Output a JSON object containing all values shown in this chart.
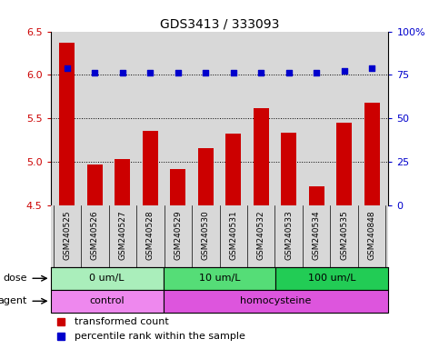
{
  "title": "GDS3413 / 333093",
  "samples": [
    "GSM240525",
    "GSM240526",
    "GSM240527",
    "GSM240528",
    "GSM240529",
    "GSM240530",
    "GSM240531",
    "GSM240532",
    "GSM240533",
    "GSM240534",
    "GSM240535",
    "GSM240848"
  ],
  "red_values": [
    6.37,
    4.97,
    5.03,
    5.35,
    4.91,
    5.15,
    5.32,
    5.62,
    5.33,
    4.72,
    5.45,
    5.68
  ],
  "blue_values_pct": [
    79,
    76,
    76,
    76,
    76,
    76,
    76,
    76,
    76,
    76,
    77,
    79
  ],
  "ylim_left": [
    4.5,
    6.5
  ],
  "ylim_right": [
    0,
    100
  ],
  "yticks_left": [
    4.5,
    5.0,
    5.5,
    6.0,
    6.5
  ],
  "yticks_right": [
    0,
    25,
    50,
    75,
    100
  ],
  "ytick_labels_right": [
    "0",
    "25",
    "50",
    "75",
    "100%"
  ],
  "gridlines": [
    5.0,
    5.5,
    6.0
  ],
  "bar_color": "#cc0000",
  "dot_color": "#0000cc",
  "dose_groups": [
    {
      "label": "0 um/L",
      "start": 0,
      "end": 4,
      "color": "#aaeebb"
    },
    {
      "label": "10 um/L",
      "start": 4,
      "end": 8,
      "color": "#55dd77"
    },
    {
      "label": "100 um/L",
      "start": 8,
      "end": 12,
      "color": "#22cc55"
    }
  ],
  "agent_groups": [
    {
      "label": "control",
      "start": 0,
      "end": 4,
      "color": "#ee88ee"
    },
    {
      "label": "homocysteine",
      "start": 4,
      "end": 12,
      "color": "#dd55dd"
    }
  ],
  "dose_label": "dose",
  "agent_label": "agent",
  "legend_red": "transformed count",
  "legend_blue": "percentile rank within the sample",
  "bg_color": "#d8d8d8",
  "plot_bg": "#ffffff",
  "left_tick_color": "#cc0000",
  "right_tick_color": "#0000cc",
  "border_color": "#000000"
}
